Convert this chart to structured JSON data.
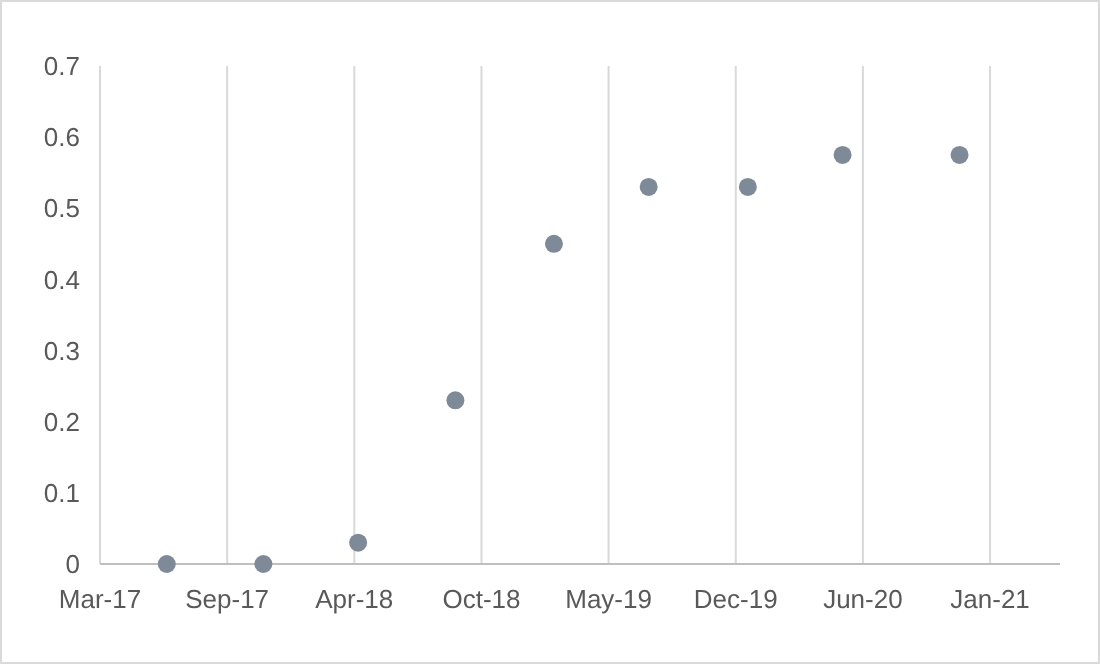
{
  "chart_data": {
    "type": "scatter",
    "x": [
      "2017-06-23",
      "2017-11-22",
      "2018-04-20",
      "2018-09-20",
      "2019-02-22",
      "2019-07-21",
      "2019-12-24",
      "2020-05-21",
      "2020-11-21"
    ],
    "values": [
      0,
      0,
      0.03,
      0.23,
      0.45,
      0.53,
      0.53,
      0.575,
      0.575
    ],
    "color": "#7f8a99",
    "marker": "circle",
    "xlim": [
      "2017-03-10",
      "2021-04-28"
    ],
    "xticks": [
      {
        "value": "2017-03-10",
        "label": "Mar-17"
      },
      {
        "value": "2017-09-26",
        "label": "Sep-17"
      },
      {
        "value": "2018-04-14",
        "label": "Apr-18"
      },
      {
        "value": "2018-10-31",
        "label": "Oct-18"
      },
      {
        "value": "2019-05-19",
        "label": "May-19"
      },
      {
        "value": "2019-12-05",
        "label": "Dec-19"
      },
      {
        "value": "2020-06-22",
        "label": "Jun-20"
      },
      {
        "value": "2021-01-08",
        "label": "Jan-21"
      }
    ],
    "ylim": [
      0,
      0.7
    ],
    "yticks": [
      0,
      0.1,
      0.2,
      0.3,
      0.4,
      0.5,
      0.6,
      0.7
    ],
    "grid": "x"
  }
}
